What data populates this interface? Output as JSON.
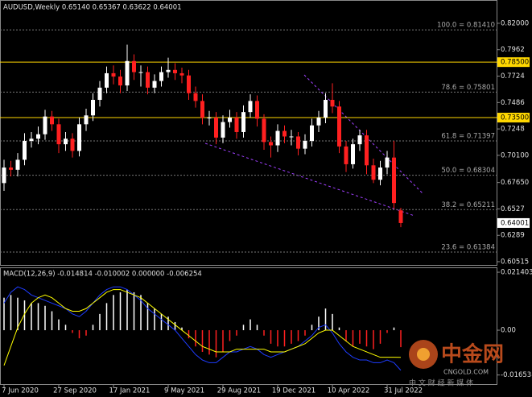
{
  "chart_data": [
    {
      "type": "candlestick",
      "title": "AUDUSD,Weekly  0.65140 0.65367 0.63622 0.64001",
      "categories": [
        "7 Jun 2020",
        null,
        null,
        null,
        null,
        null,
        null,
        null,
        "27 Sep 2020",
        null,
        null,
        null,
        null,
        null,
        null,
        null,
        "17 Jan 2021",
        null,
        null,
        null,
        null,
        null,
        null,
        null,
        "9 May 2021",
        null,
        null,
        null,
        null,
        null,
        null,
        null,
        "29 Aug 2021",
        null,
        null,
        null,
        null,
        null,
        null,
        null,
        "19 Dec 2021",
        null,
        null,
        null,
        null,
        null,
        null,
        null,
        "10 Apr 2022",
        null,
        null,
        null,
        null,
        null,
        null,
        null,
        "31 Jul 2022",
        null,
        null
      ],
      "open": [
        0.676,
        0.69,
        0.688,
        0.697,
        0.714,
        0.716,
        0.72,
        0.736,
        0.729,
        0.711,
        0.716,
        0.705,
        0.729,
        0.737,
        0.751,
        0.762,
        0.775,
        0.772,
        0.764,
        0.786,
        0.776,
        0.776,
        0.762,
        0.768,
        0.776,
        0.778,
        0.775,
        0.773,
        0.757,
        0.75,
        0.735,
        0.735,
        0.717,
        0.731,
        0.735,
        0.722,
        0.74,
        0.75,
        0.734,
        0.713,
        0.71,
        0.723,
        0.718,
        0.718,
        0.707,
        0.714,
        0.728,
        0.735,
        0.751,
        0.745,
        0.709,
        0.693,
        0.711,
        0.719,
        0.692,
        0.679,
        0.69,
        0.699,
        0.6514
      ],
      "high": [
        0.697,
        0.696,
        0.703,
        0.721,
        0.722,
        0.727,
        0.742,
        0.741,
        0.734,
        0.722,
        0.721,
        0.735,
        0.743,
        0.757,
        0.768,
        0.781,
        0.782,
        0.778,
        0.8007,
        0.792,
        0.782,
        0.781,
        0.774,
        0.781,
        0.789,
        0.784,
        0.78,
        0.778,
        0.763,
        0.756,
        0.741,
        0.74,
        0.737,
        0.742,
        0.74,
        0.746,
        0.756,
        0.755,
        0.738,
        0.718,
        0.729,
        0.728,
        0.724,
        0.722,
        0.72,
        0.734,
        0.741,
        0.757,
        0.766,
        0.75,
        0.714,
        0.716,
        0.724,
        0.724,
        0.698,
        0.696,
        0.705,
        0.714,
        0.65367
      ],
      "low": [
        0.669,
        0.682,
        0.682,
        0.692,
        0.708,
        0.711,
        0.715,
        0.723,
        0.703,
        0.705,
        0.699,
        0.7,
        0.723,
        0.732,
        0.745,
        0.757,
        0.765,
        0.757,
        0.759,
        0.769,
        0.763,
        0.756,
        0.757,
        0.763,
        0.771,
        0.769,
        0.766,
        0.751,
        0.744,
        0.729,
        0.728,
        0.711,
        0.712,
        0.726,
        0.716,
        0.717,
        0.735,
        0.727,
        0.706,
        0.699,
        0.704,
        0.712,
        0.71,
        0.701,
        0.702,
        0.709,
        0.722,
        0.73,
        0.739,
        0.703,
        0.686,
        0.689,
        0.705,
        0.684,
        0.676,
        0.674,
        0.684,
        0.653,
        0.63622
      ],
      "close": [
        0.69,
        0.688,
        0.697,
        0.714,
        0.716,
        0.72,
        0.736,
        0.729,
        0.711,
        0.716,
        0.705,
        0.729,
        0.737,
        0.751,
        0.762,
        0.775,
        0.772,
        0.764,
        0.786,
        0.776,
        0.776,
        0.762,
        0.768,
        0.776,
        0.778,
        0.775,
        0.773,
        0.757,
        0.75,
        0.735,
        0.735,
        0.717,
        0.731,
        0.735,
        0.722,
        0.74,
        0.75,
        0.734,
        0.713,
        0.71,
        0.723,
        0.718,
        0.718,
        0.707,
        0.714,
        0.728,
        0.735,
        0.751,
        0.745,
        0.709,
        0.693,
        0.711,
        0.719,
        0.692,
        0.679,
        0.69,
        0.699,
        0.658,
        0.64001
      ],
      "up_color": "#ffffff",
      "down_color": "#ff2020",
      "ylim": [
        0.6015,
        0.841
      ],
      "yticks": [
        {
          "value": 0.82,
          "label": "0.82000"
        },
        0.7962,
        0.7724,
        0.7486,
        0.7248,
        {
          "value": 0.701,
          "label": "0.70100"
        },
        {
          "value": 0.6765,
          "label": "0.67650"
        },
        0.6527,
        0.6289,
        0.60515
      ],
      "hlines": [
        {
          "value": 0.785,
          "label": "0.78500"
        },
        {
          "value": 0.735,
          "label": "0.73500"
        }
      ],
      "hline_color": "#ffd700",
      "fib_levels": [
        {
          "value": 0.8141,
          "label": "100.0 = 0.81410"
        },
        {
          "value": 0.75801,
          "label": "78.6 = 0.75801"
        },
        {
          "value": 0.71397,
          "label": "61.8 = 0.71397"
        },
        {
          "value": 0.68304,
          "label": "50.0 = 0.68304"
        },
        {
          "value": 0.65211,
          "label": "38.2 = 0.65211"
        },
        {
          "value": 0.61384,
          "label": "23.6 = 0.61384"
        }
      ]
    },
    {
      "type": "macd",
      "title": "MACD(12,26,9) -0.014814 -0.010002 0.000000 -0.006254",
      "hist": [
        0.012,
        0.013,
        0.012,
        0.011,
        0.01,
        0.01,
        0.009,
        0.007,
        0.004,
        0.002,
        -0.001,
        -0.003,
        -0.002,
        0.002,
        0.006,
        0.01,
        0.013,
        0.014,
        0.015,
        0.014,
        0.013,
        0.01,
        0.008,
        0.006,
        0.005,
        0.003,
        0.001,
        -0.003,
        -0.006,
        -0.008,
        -0.009,
        -0.01,
        -0.008,
        -0.004,
        -0.002,
        0.002,
        0.004,
        0.002,
        -0.002,
        -0.005,
        -0.006,
        -0.006,
        -0.005,
        -0.004,
        -0.002,
        0.002,
        0.005,
        0.008,
        0.006,
        0.001,
        -0.004,
        -0.006,
        -0.005,
        -0.006,
        -0.007,
        -0.005,
        -0.001,
        0.001,
        -0.006254
      ],
      "main": [
        0.01,
        0.014,
        0.016,
        0.015,
        0.013,
        0.012,
        0.011,
        0.01,
        0.009,
        0.008,
        0.006,
        0.005,
        0.007,
        0.01,
        0.013,
        0.015,
        0.016,
        0.016,
        0.015,
        0.013,
        0.011,
        0.008,
        0.006,
        0.004,
        0.002,
        0.0,
        -0.003,
        -0.006,
        -0.009,
        -0.011,
        -0.012,
        -0.012,
        -0.01,
        -0.008,
        -0.008,
        -0.007,
        -0.006,
        -0.007,
        -0.009,
        -0.01,
        -0.009,
        -0.008,
        -0.007,
        -0.006,
        -0.004,
        -0.002,
        0.001,
        0.002,
        -0.001,
        -0.005,
        -0.008,
        -0.01,
        -0.011,
        -0.011,
        -0.012,
        -0.012,
        -0.011,
        -0.012,
        -0.014814
      ],
      "signal": [
        -0.013,
        -0.006,
        0.001,
        0.006,
        0.01,
        0.012,
        0.013,
        0.012,
        0.01,
        0.008,
        0.007,
        0.007,
        0.008,
        0.01,
        0.012,
        0.014,
        0.015,
        0.015,
        0.014,
        0.013,
        0.012,
        0.01,
        0.008,
        0.006,
        0.004,
        0.002,
        0.0,
        -0.002,
        -0.004,
        -0.006,
        -0.007,
        -0.008,
        -0.008,
        -0.008,
        -0.007,
        -0.007,
        -0.007,
        -0.007,
        -0.007,
        -0.008,
        -0.008,
        -0.008,
        -0.007,
        -0.006,
        -0.005,
        -0.003,
        -0.001,
        0.0,
        0.0,
        -0.002,
        -0.004,
        -0.006,
        -0.007,
        -0.008,
        -0.009,
        -0.01,
        -0.01,
        -0.01,
        -0.010002
      ],
      "pos_color": "#ffffff",
      "neg_color": "#ff2020",
      "main_color": "#1e3cff",
      "signal_color": "#ffff00",
      "ylim": [
        -0.0202,
        0.0232
      ],
      "yticks": [
        0.021403,
        {
          "value": 0,
          "label": "0.00"
        },
        -0.016538
      ]
    }
  ],
  "watermark": {
    "brand": "中金网",
    "site": "CNGOLD.COM",
    "tagline": "中 文 财 经 新 媒 体"
  }
}
